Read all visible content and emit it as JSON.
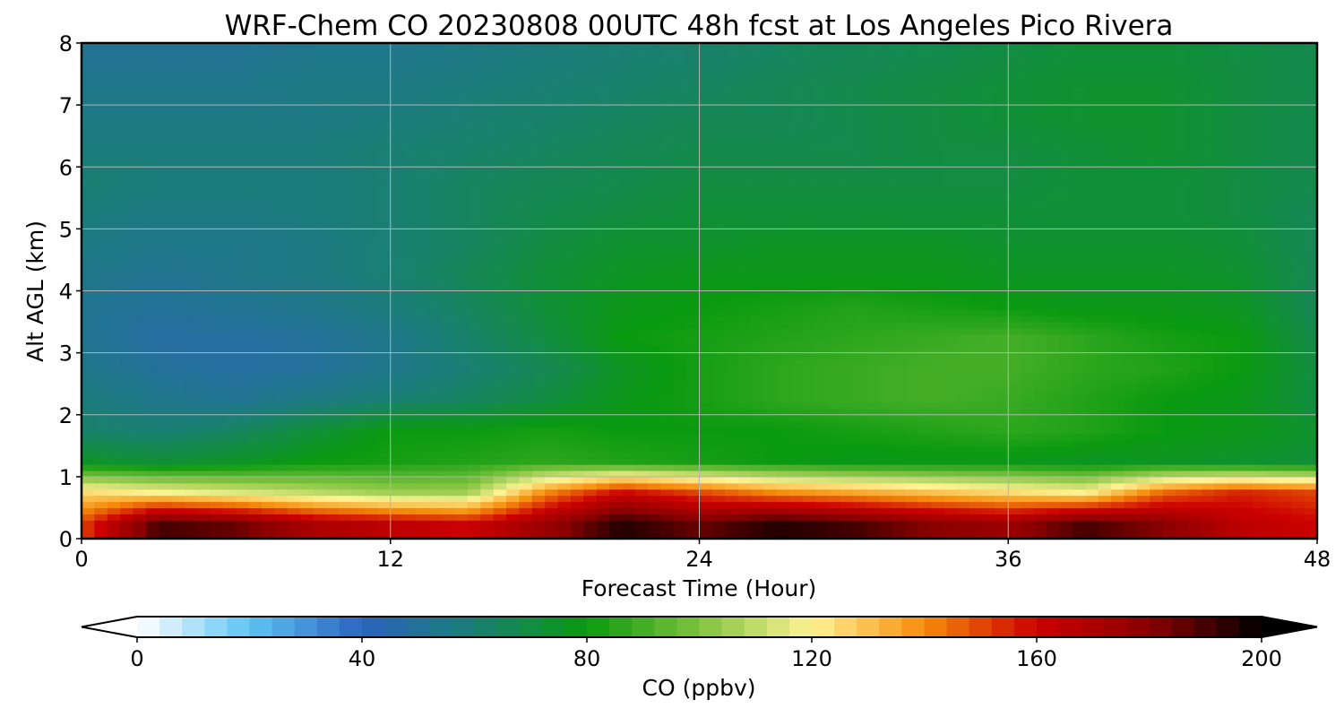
{
  "chart_data": {
    "type": "heatmap",
    "title": "WRF-Chem CO  20230808 00UTC 48h fcst at Los Angeles Pico Rivera",
    "xlabel": "Forecast Time (Hour)",
    "ylabel": "Alt AGL (km)",
    "xlim": [
      0,
      48
    ],
    "ylim": [
      0,
      8
    ],
    "x_ticks": [
      0,
      12,
      24,
      36,
      48
    ],
    "y_ticks": [
      0,
      1,
      2,
      3,
      4,
      5,
      6,
      7,
      8
    ],
    "grid": true,
    "x": [
      0,
      3,
      6,
      9,
      12,
      15,
      18,
      21,
      24,
      27,
      30,
      33,
      36,
      39,
      42,
      45,
      48
    ],
    "y": [
      0.25,
      0.75,
      1.25,
      1.75,
      2.25,
      2.75,
      3.25,
      3.75,
      4.25,
      4.75,
      5.25,
      5.75,
      6.25,
      6.75,
      7.25,
      7.75
    ],
    "values": [
      [
        150,
        190,
        185,
        170,
        165,
        160,
        175,
        195,
        185,
        195,
        190,
        180,
        175,
        190,
        180,
        165,
        160
      ],
      [
        125,
        120,
        115,
        110,
        105,
        105,
        140,
        160,
        150,
        140,
        135,
        130,
        125,
        120,
        145,
        155,
        150
      ],
      [
        75,
        72,
        75,
        80,
        82,
        84,
        86,
        84,
        82,
        80,
        78,
        78,
        78,
        76,
        76,
        74,
        72
      ],
      [
        62,
        60,
        64,
        72,
        80,
        80,
        82,
        80,
        80,
        80,
        82,
        84,
        86,
        84,
        80,
        78,
        74
      ],
      [
        58,
        54,
        52,
        56,
        60,
        64,
        70,
        78,
        82,
        86,
        88,
        90,
        88,
        84,
        80,
        78,
        70
      ],
      [
        54,
        50,
        48,
        50,
        54,
        60,
        66,
        76,
        82,
        86,
        88,
        90,
        90,
        86,
        84,
        80,
        70
      ],
      [
        52,
        48,
        48,
        50,
        54,
        62,
        70,
        80,
        82,
        84,
        86,
        88,
        90,
        86,
        82,
        80,
        68
      ],
      [
        52,
        50,
        52,
        54,
        58,
        64,
        72,
        78,
        80,
        82,
        84,
        82,
        80,
        78,
        78,
        76,
        66
      ],
      [
        54,
        52,
        54,
        56,
        60,
        66,
        72,
        76,
        78,
        78,
        78,
        78,
        76,
        76,
        76,
        74,
        66
      ],
      [
        56,
        54,
        54,
        56,
        60,
        64,
        70,
        74,
        74,
        76,
        76,
        76,
        74,
        74,
        74,
        72,
        66
      ],
      [
        58,
        56,
        56,
        58,
        60,
        64,
        68,
        70,
        72,
        72,
        72,
        72,
        72,
        72,
        72,
        70,
        66
      ],
      [
        60,
        58,
        58,
        58,
        60,
        64,
        66,
        68,
        70,
        70,
        70,
        70,
        70,
        72,
        72,
        70,
        68
      ],
      [
        58,
        58,
        58,
        58,
        60,
        62,
        64,
        66,
        68,
        68,
        68,
        70,
        70,
        72,
        74,
        70,
        68
      ],
      [
        56,
        56,
        56,
        56,
        58,
        60,
        62,
        64,
        66,
        66,
        68,
        70,
        72,
        74,
        74,
        70,
        68
      ],
      [
        54,
        54,
        54,
        56,
        56,
        58,
        60,
        62,
        64,
        66,
        68,
        70,
        72,
        74,
        74,
        70,
        68
      ],
      [
        52,
        52,
        52,
        54,
        54,
        56,
        58,
        60,
        62,
        64,
        66,
        68,
        70,
        72,
        72,
        70,
        68
      ]
    ],
    "colorbar": {
      "label": "CO  (ppbv)",
      "ticks": [
        0,
        40,
        80,
        120,
        160,
        200
      ],
      "min": 0,
      "max": 200,
      "extend": "both",
      "colors": [
        "#ffffff",
        "#5ec4f3",
        "#2b63bf",
        "#1a7f73",
        "#0a9a10",
        "#7fc23e",
        "#fff394",
        "#f68c0a",
        "#cc0000",
        "#8b0000",
        "#000000"
      ]
    }
  }
}
